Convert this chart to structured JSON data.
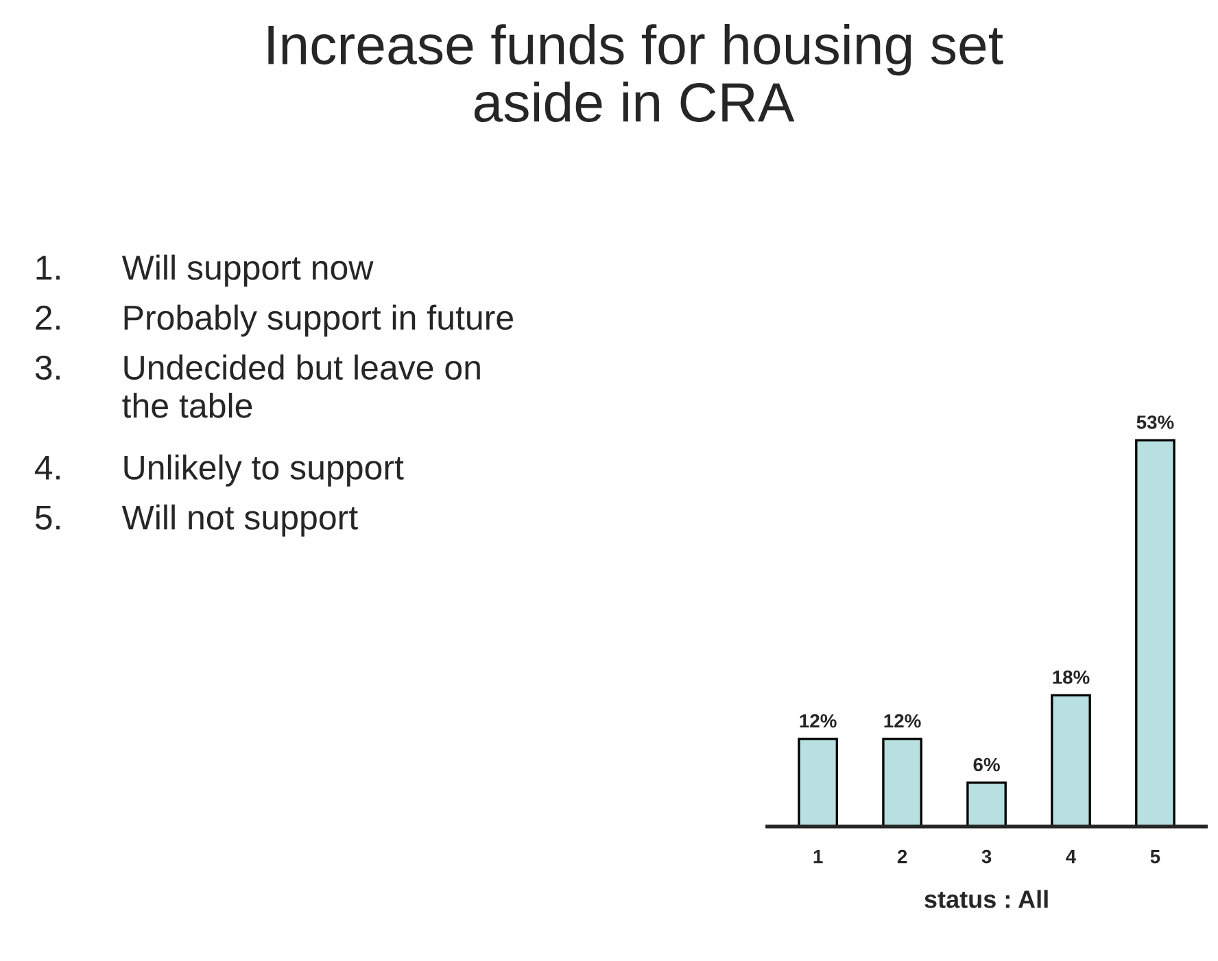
{
  "chart_data": {
    "type": "bar",
    "title": "Increase funds for housing set\naside in CRA",
    "categories": [
      "1",
      "2",
      "3",
      "4",
      "5"
    ],
    "values": [
      12,
      12,
      6,
      18,
      53
    ],
    "value_labels": [
      "12%",
      "12%",
      "6%",
      "18%",
      "53%"
    ],
    "color": "#b8e0e0",
    "xlabel": "status : All",
    "annotations": [
      "1. Will support now",
      "2. Probably support in future",
      "3. Undecided but leave on\nthe table",
      "4. Unlikely to support",
      "5. Will not support"
    ],
    "grid": false,
    "legend": false
  }
}
